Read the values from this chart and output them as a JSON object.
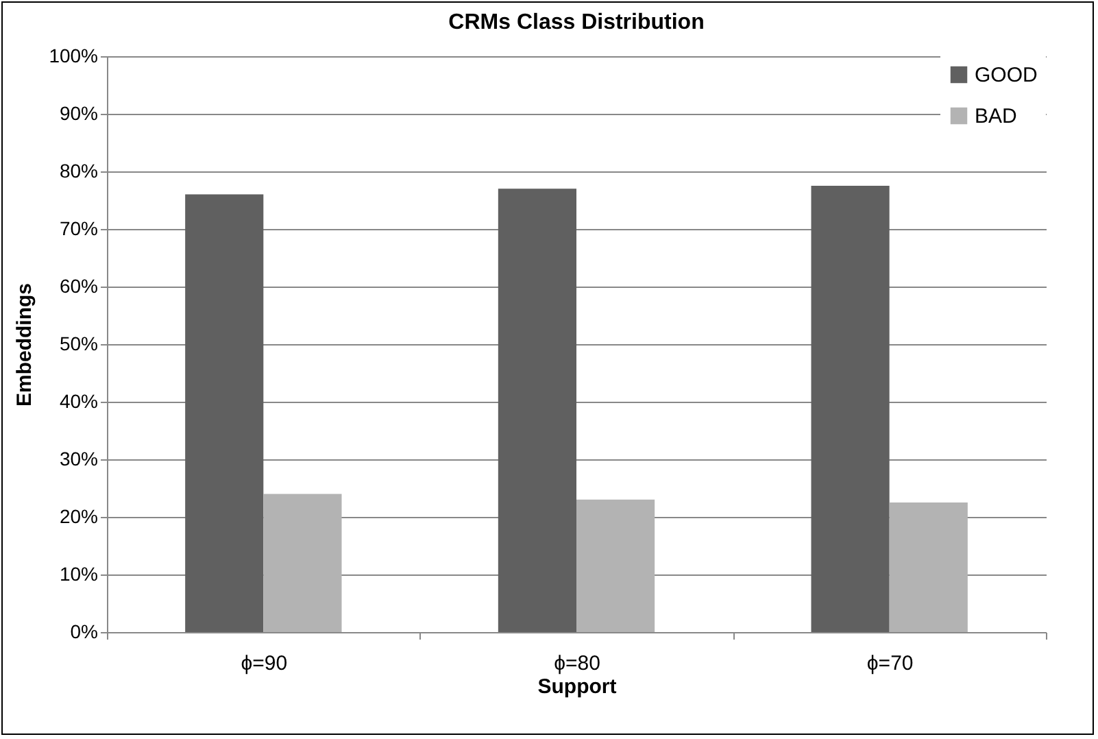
{
  "chart_data": {
    "type": "bar",
    "title": "CRMs Class Distribution",
    "xlabel": "Support",
    "ylabel": "Embeddings",
    "categories": [
      "ϕ=90",
      "ϕ=80",
      "ϕ=70"
    ],
    "series": [
      {
        "name": "GOOD",
        "color": "#606060",
        "values": [
          76,
          77,
          77.5
        ]
      },
      {
        "name": "BAD",
        "color": "#b3b3b3",
        "values": [
          24,
          23,
          22.5
        ]
      }
    ],
    "ylim": [
      0,
      100
    ],
    "yticks": [
      {
        "value": 0,
        "label": "0%"
      },
      {
        "value": 10,
        "label": "10%"
      },
      {
        "value": 20,
        "label": "20%"
      },
      {
        "value": 30,
        "label": "30%"
      },
      {
        "value": 40,
        "label": "40%"
      },
      {
        "value": 50,
        "label": "50%"
      },
      {
        "value": 60,
        "label": "60%"
      },
      {
        "value": 70,
        "label": "70%"
      },
      {
        "value": 80,
        "label": "80%"
      },
      {
        "value": 90,
        "label": "90%"
      },
      {
        "value": 100,
        "label": "100%"
      }
    ],
    "grid": "y",
    "legend": "top right"
  }
}
